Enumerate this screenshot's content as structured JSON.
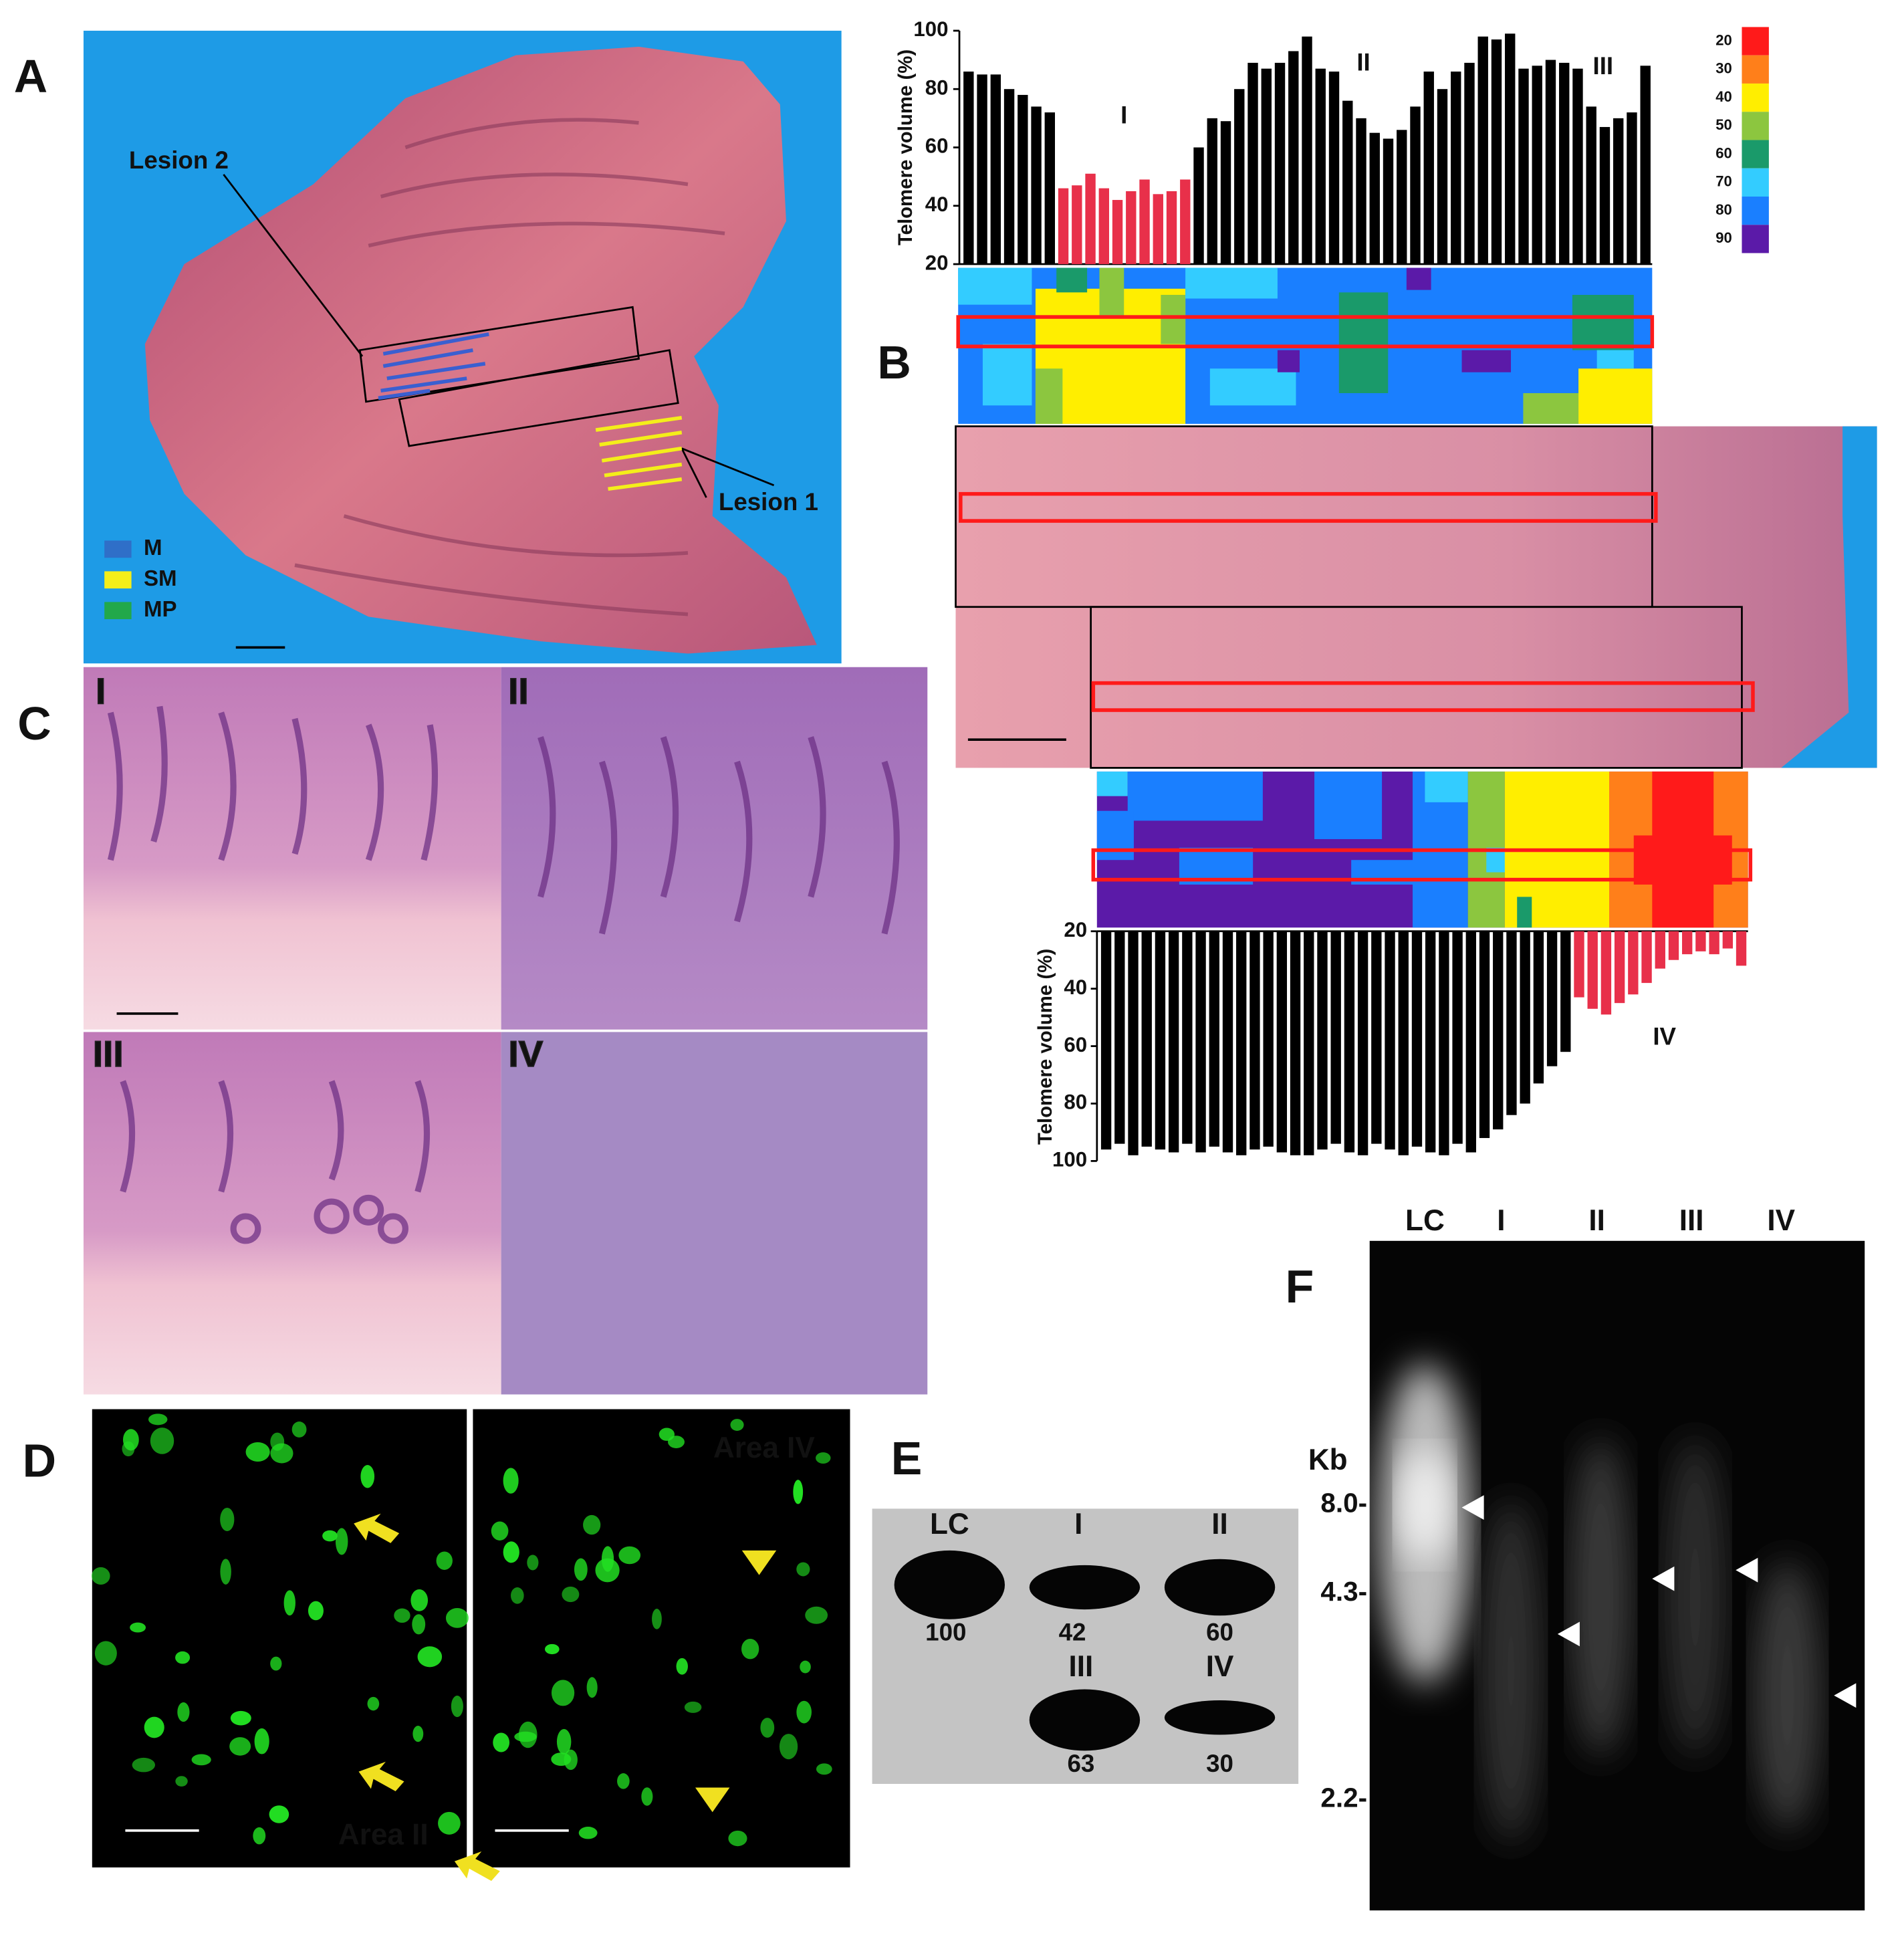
{
  "panel_labels": [
    "A",
    "B",
    "C",
    "D",
    "E",
    "F"
  ],
  "panel_a": {
    "lesions": [
      "Lesion 2",
      "Lesion 1"
    ],
    "legend": [
      "M",
      "SM",
      "MP"
    ],
    "legend_colors": [
      "#2f6fc8",
      "#f4ee1a",
      "#22a84a"
    ]
  },
  "chart_data": [
    {
      "type": "bar",
      "y_label": "Telomere volume (%)",
      "ylim": [
        20,
        100
      ],
      "yticks": [
        20,
        40,
        60,
        80,
        100
      ],
      "y_inverted": false,
      "region_labels": [
        "I",
        "II",
        "III"
      ],
      "values": [
        86,
        85,
        85,
        80,
        78,
        74,
        72,
        46,
        47,
        51,
        46,
        42,
        45,
        49,
        44,
        45,
        49,
        60,
        70,
        69,
        80,
        89,
        87,
        89,
        93,
        98,
        87,
        86,
        76,
        70,
        65,
        63,
        66,
        74,
        86,
        80,
        86,
        89,
        98,
        97,
        99,
        87,
        88,
        90,
        89,
        87,
        74,
        67,
        70,
        72,
        88
      ],
      "colors": [
        "#000",
        "#000",
        "#000",
        "#000",
        "#000",
        "#000",
        "#000",
        "#e8304a",
        "#e8304a",
        "#e8304a",
        "#e8304a",
        "#e8304a",
        "#e8304a",
        "#e8304a",
        "#e8304a",
        "#e8304a",
        "#e8304a",
        "#000",
        "#000",
        "#000",
        "#000",
        "#000",
        "#000",
        "#000",
        "#000",
        "#000",
        "#000",
        "#000",
        "#000",
        "#000",
        "#000",
        "#000",
        "#000",
        "#000",
        "#000",
        "#000",
        "#000",
        "#000",
        "#000",
        "#000",
        "#000",
        "#000",
        "#000",
        "#000",
        "#000",
        "#000",
        "#000",
        "#000",
        "#000",
        "#000",
        "#000"
      ]
    },
    {
      "type": "bar",
      "y_label": "Telomere volume (%)",
      "ylim": [
        20,
        100
      ],
      "yticks": [
        20,
        40,
        60,
        80,
        100
      ],
      "y_inverted": true,
      "region_labels": [
        "IV"
      ],
      "values": [
        96,
        94,
        98,
        95,
        96,
        97,
        94,
        97,
        95,
        97,
        98,
        96,
        95,
        97,
        98,
        98,
        96,
        94,
        97,
        98,
        94,
        96,
        98,
        95,
        97,
        98,
        94,
        97,
        92,
        89,
        84,
        80,
        73,
        67,
        62,
        43,
        47,
        49,
        45,
        42,
        38,
        33,
        30,
        28,
        27,
        28,
        26,
        32
      ],
      "colors": [
        "#000",
        "#000",
        "#000",
        "#000",
        "#000",
        "#000",
        "#000",
        "#000",
        "#000",
        "#000",
        "#000",
        "#000",
        "#000",
        "#000",
        "#000",
        "#000",
        "#000",
        "#000",
        "#000",
        "#000",
        "#000",
        "#000",
        "#000",
        "#000",
        "#000",
        "#000",
        "#000",
        "#000",
        "#000",
        "#000",
        "#000",
        "#000",
        "#000",
        "#000",
        "#000",
        "#e8304a",
        "#e8304a",
        "#e8304a",
        "#e8304a",
        "#e8304a",
        "#e8304a",
        "#e8304a",
        "#e8304a",
        "#e8304a",
        "#e8304a",
        "#e8304a",
        "#e8304a",
        "#e8304a"
      ]
    }
  ],
  "color_scale": {
    "ticks": [
      20,
      30,
      40,
      50,
      60,
      70,
      80,
      90
    ],
    "colors": [
      "#ff1a1a",
      "#ff7f1a",
      "#ffee00",
      "#8cc63f",
      "#1a9a6a",
      "#33ccff",
      "#1a7fff",
      "#5b1aa8"
    ]
  },
  "panel_c": {
    "labels": [
      "I",
      "II",
      "III",
      "IV"
    ]
  },
  "panel_d": {
    "labels": [
      "Area II",
      "Area IV"
    ]
  },
  "panel_e": {
    "lanes": [
      "LC",
      "I",
      "II",
      "III",
      "IV"
    ],
    "values": [
      100,
      42,
      60,
      63,
      30
    ]
  },
  "panel_f": {
    "lanes": [
      "LC",
      "I",
      "II",
      "III",
      "IV"
    ],
    "unit": "Kb",
    "markers": [
      "8.0-",
      "4.3-",
      "2.2-"
    ]
  }
}
